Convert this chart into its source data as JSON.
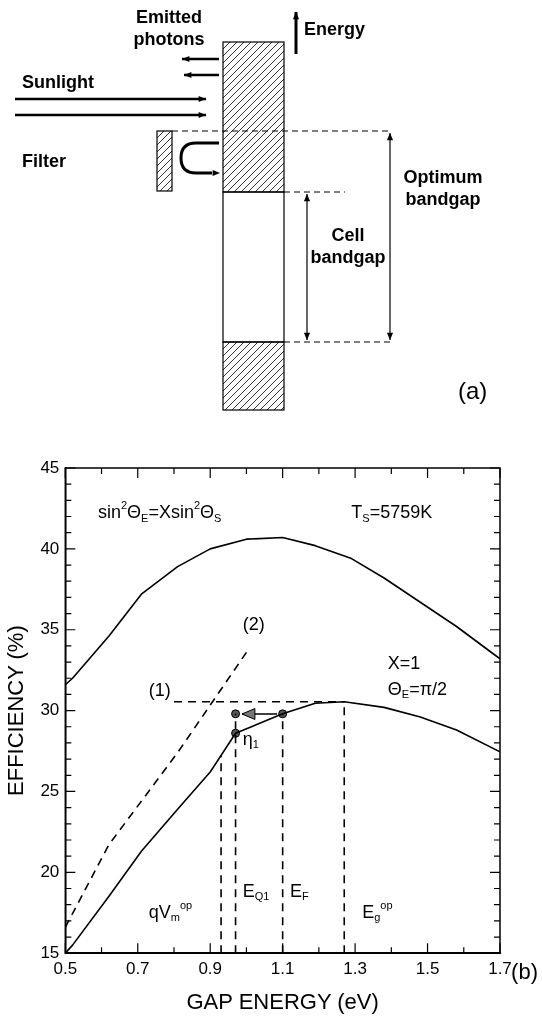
{
  "chart_data": [
    {
      "type": "other",
      "annotations": [
        "Emitted photons",
        "Energy",
        "Sunlight",
        "Filter",
        "Optimum bandgap",
        "Cell bandgap",
        "(a)"
      ]
    },
    {
      "type": "line",
      "xlabel": "GAP ENERGY (eV)",
      "ylabel": "EFFICIENCY (%)",
      "xlim": [
        0.5,
        1.7
      ],
      "ylim": [
        15,
        45
      ],
      "xticks": [
        0.5,
        {
          "value": 0.6,
          "label": null
        },
        0.7,
        {
          "value": 0.8,
          "label": null
        },
        0.9,
        {
          "value": 1.0,
          "label": null
        },
        1.1,
        {
          "value": 1.2,
          "label": null
        },
        1.3,
        {
          "value": 1.4,
          "label": null
        },
        1.5,
        {
          "value": 1.6,
          "label": null
        },
        1.7
      ],
      "yticks": [
        15,
        {
          "value": 16,
          "label": null
        },
        {
          "value": 17,
          "label": null
        },
        {
          "value": 18,
          "label": null
        },
        {
          "value": 19,
          "label": null
        },
        20,
        {
          "value": 21,
          "label": null
        },
        {
          "value": 22,
          "label": null
        },
        {
          "value": 23,
          "label": null
        },
        {
          "value": 24,
          "label": null
        },
        25,
        {
          "value": 26,
          "label": null
        },
        {
          "value": 27,
          "label": null
        },
        {
          "value": 28,
          "label": null
        },
        {
          "value": 29,
          "label": null
        },
        30,
        {
          "value": 31,
          "label": null
        },
        {
          "value": 32,
          "label": null
        },
        {
          "value": 33,
          "label": null
        },
        {
          "value": 34,
          "label": null
        },
        35,
        {
          "value": 36,
          "label": null
        },
        {
          "value": 37,
          "label": null
        },
        {
          "value": 38,
          "label": null
        },
        {
          "value": 39,
          "label": null
        },
        40,
        {
          "value": 41,
          "label": null
        },
        {
          "value": 42,
          "label": null
        },
        {
          "value": 43,
          "label": null
        },
        {
          "value": 44,
          "label": null
        },
        45
      ],
      "grid": false,
      "legend": false,
      "series": [
        {
          "type": "line",
          "color": "#000000",
          "line_style": "solid",
          "marker": "none",
          "x": [
            0.5,
            0.52,
            0.62,
            0.71,
            0.81,
            0.9,
            1.0,
            1.1,
            1.19,
            1.29,
            1.38,
            1.48,
            1.58,
            1.67,
            1.7
          ],
          "values": [
            31.6,
            32.0,
            34.6,
            37.2,
            38.9,
            40.0,
            40.6,
            40.7,
            40.2,
            39.4,
            38.2,
            36.7,
            35.2,
            33.7,
            33.2
          ]
        },
        {
          "type": "line",
          "color": "#000000",
          "line_style": "solid",
          "marker": "none",
          "x": [
            0.5,
            0.52,
            0.62,
            0.71,
            0.81,
            0.9,
            0.97,
            1.1,
            1.19,
            1.27,
            1.38,
            1.48,
            1.58,
            1.7
          ],
          "values": [
            15.0,
            15.5,
            18.5,
            21.3,
            23.9,
            26.2,
            28.6,
            29.8,
            30.45,
            30.55,
            30.2,
            29.6,
            28.8,
            27.45
          ]
        },
        {
          "type": "line",
          "color": "#000000",
          "line_style": "dashed",
          "marker": "none",
          "x": [
            0.5,
            0.62,
            0.81,
            1.0
          ],
          "values": [
            16.6,
            21.7,
            27.4,
            33.6
          ]
        },
        {
          "type": "line",
          "color": "#000000",
          "line_style": "dashed",
          "marker": "none",
          "x": [
            0.8,
            1.27
          ],
          "values": [
            30.55,
            30.55
          ]
        },
        {
          "type": "line",
          "color": "#000000",
          "line_style": "dashed",
          "marker": "none",
          "x": [
            0.93,
            0.93
          ],
          "values": [
            15,
            27.2
          ]
        },
        {
          "type": "line",
          "color": "#000000",
          "line_style": "dashed",
          "marker": "none",
          "x": [
            0.97,
            0.97
          ],
          "values": [
            15,
            29.8
          ]
        },
        {
          "type": "line",
          "color": "#000000",
          "line_style": "dashed",
          "marker": "none",
          "x": [
            1.1,
            1.1
          ],
          "values": [
            15,
            29.8
          ]
        },
        {
          "type": "line",
          "color": "#000000",
          "line_style": "dashed",
          "marker": "none",
          "x": [
            1.27,
            1.27
          ],
          "values": [
            15,
            30.55
          ]
        },
        {
          "type": "scatter",
          "color": "#555555",
          "marker": "circle",
          "x": [
            0.97,
            0.97,
            1.1
          ],
          "values": [
            28.6,
            29.8,
            29.8
          ]
        }
      ],
      "annotations": [
        "sin$^{2}$Θ$_{E}$=Xsin$^{2}$Θ$_{S}$",
        "T$_{S}$=5759K",
        "(2)",
        "(1)",
        "X=1",
        "Θ$_{E}$=π/2",
        "η$_{1}$",
        "E$_{Q1}$",
        "E$_{F}$",
        "qV$_{m}$$^{op}$",
        "E$_{g}$$^{op}$",
        "(b)"
      ]
    }
  ]
}
